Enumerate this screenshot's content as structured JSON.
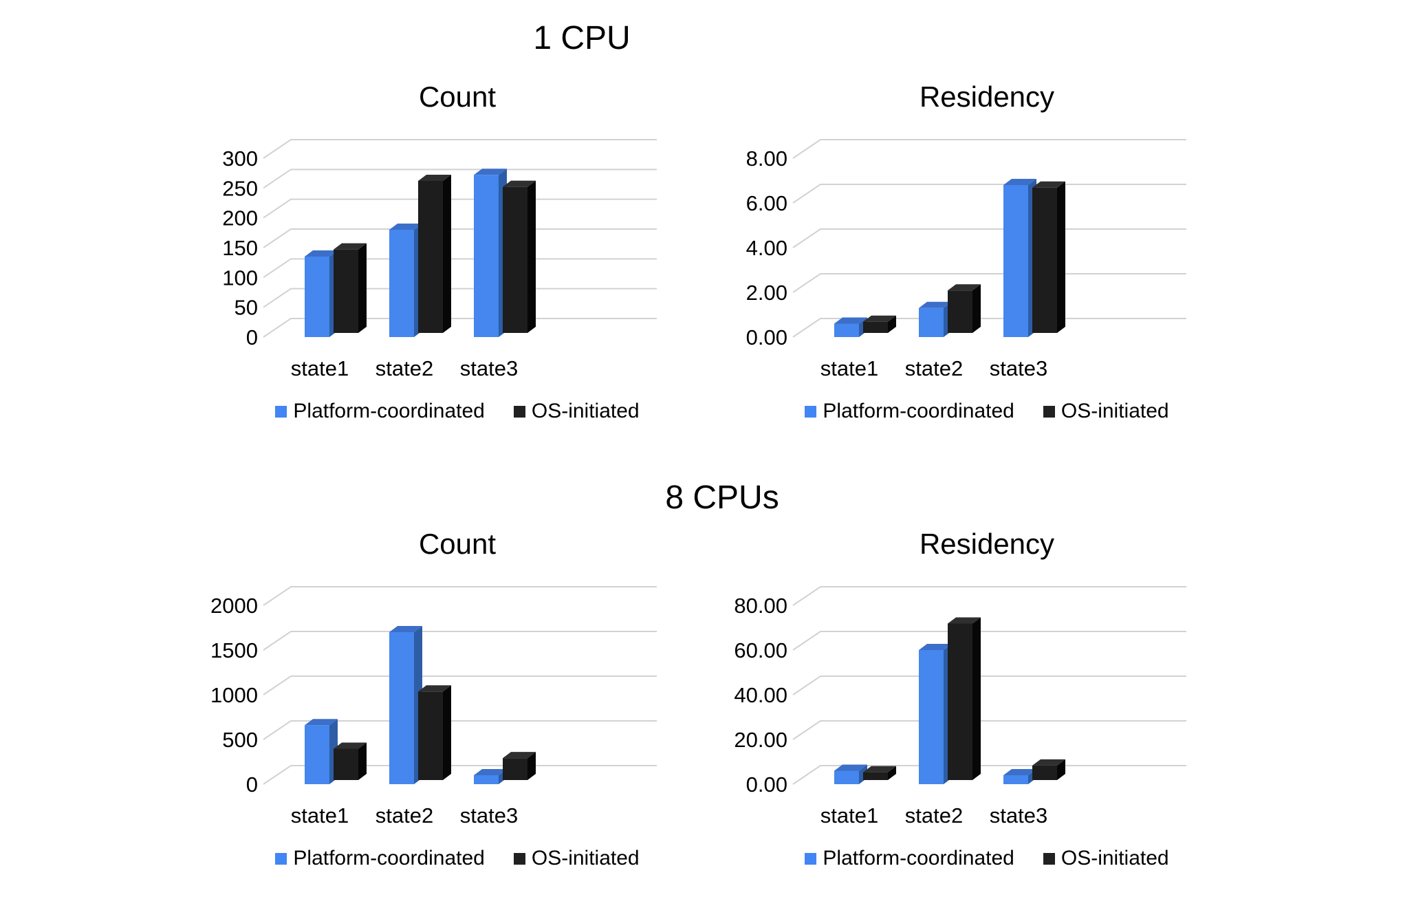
{
  "page": {
    "background": "#ffffff"
  },
  "colors": {
    "text": "#000000",
    "gridline": "#d2d2d2",
    "series1_legend": "#4285f4",
    "series1_front": "#4586ef",
    "series1_side": "#2d5da6",
    "series1_top": "#3c6fc9",
    "series2_legend": "#212121",
    "series2_front": "#1d1d1d",
    "series2_side": "#070707",
    "series2_top": "#2f2f2f"
  },
  "sections": [
    {
      "title": "1 CPU",
      "chart_indexes": [
        0,
        1
      ]
    },
    {
      "title": "8 CPUs",
      "chart_indexes": [
        2,
        3
      ]
    }
  ],
  "chart_data": [
    {
      "type": "bar",
      "section": "1 CPU",
      "title": "Count",
      "categories": [
        "state1",
        "state2",
        "state3"
      ],
      "series": [
        {
          "name": "Platform-coordinated",
          "values": [
            135,
            180,
            272
          ]
        },
        {
          "name": "OS-initiated",
          "values": [
            140,
            255,
            245
          ]
        }
      ],
      "xlabel": "",
      "ylabel": "",
      "ylim": [
        0,
        300
      ],
      "yticks": [
        0,
        50,
        100,
        150,
        200,
        250,
        300
      ],
      "ytick_labels": [
        "0",
        "50",
        "100",
        "150",
        "200",
        "250",
        "300"
      ],
      "grid": true,
      "legend_position": "bottom",
      "style": "3d"
    },
    {
      "type": "bar",
      "section": "1 CPU",
      "title": "Residency",
      "categories": [
        "state1",
        "state2",
        "state3"
      ],
      "series": [
        {
          "name": "Platform-coordinated",
          "values": [
            0.6,
            1.3,
            6.8
          ]
        },
        {
          "name": "OS-initiated",
          "values": [
            0.5,
            1.9,
            6.5
          ]
        }
      ],
      "xlabel": "",
      "ylabel": "",
      "ylim": [
        0,
        8
      ],
      "yticks": [
        0,
        2,
        4,
        6,
        8
      ],
      "ytick_labels": [
        "0.00",
        "2.00",
        "4.00",
        "6.00",
        "8.00"
      ],
      "grid": true,
      "legend_position": "bottom",
      "style": "3d"
    },
    {
      "type": "bar",
      "section": "8 CPUs",
      "title": "Count",
      "categories": [
        "state1",
        "state2",
        "state3"
      ],
      "series": [
        {
          "name": "Platform-coordinated",
          "values": [
            660,
            1700,
            100
          ]
        },
        {
          "name": "OS-initiated",
          "values": [
            350,
            990,
            245
          ]
        }
      ],
      "xlabel": "",
      "ylabel": "",
      "ylim": [
        0,
        2000
      ],
      "yticks": [
        0,
        500,
        1000,
        1500,
        2000
      ],
      "ytick_labels": [
        "0",
        "500",
        "1000",
        "1500",
        "2000"
      ],
      "grid": true,
      "legend_position": "bottom",
      "style": "3d"
    },
    {
      "type": "bar",
      "section": "8 CPUs",
      "title": "Residency",
      "categories": [
        "state1",
        "state2",
        "state3"
      ],
      "series": [
        {
          "name": "Platform-coordinated",
          "values": [
            6,
            60,
            4
          ]
        },
        {
          "name": "OS-initiated",
          "values": [
            3.5,
            70,
            6.5
          ]
        }
      ],
      "xlabel": "",
      "ylabel": "",
      "ylim": [
        0,
        80
      ],
      "yticks": [
        0,
        20,
        40,
        60,
        80
      ],
      "ytick_labels": [
        "0.00",
        "20.00",
        "40.00",
        "60.00",
        "80.00"
      ],
      "grid": true,
      "legend_position": "bottom",
      "style": "3d"
    }
  ]
}
